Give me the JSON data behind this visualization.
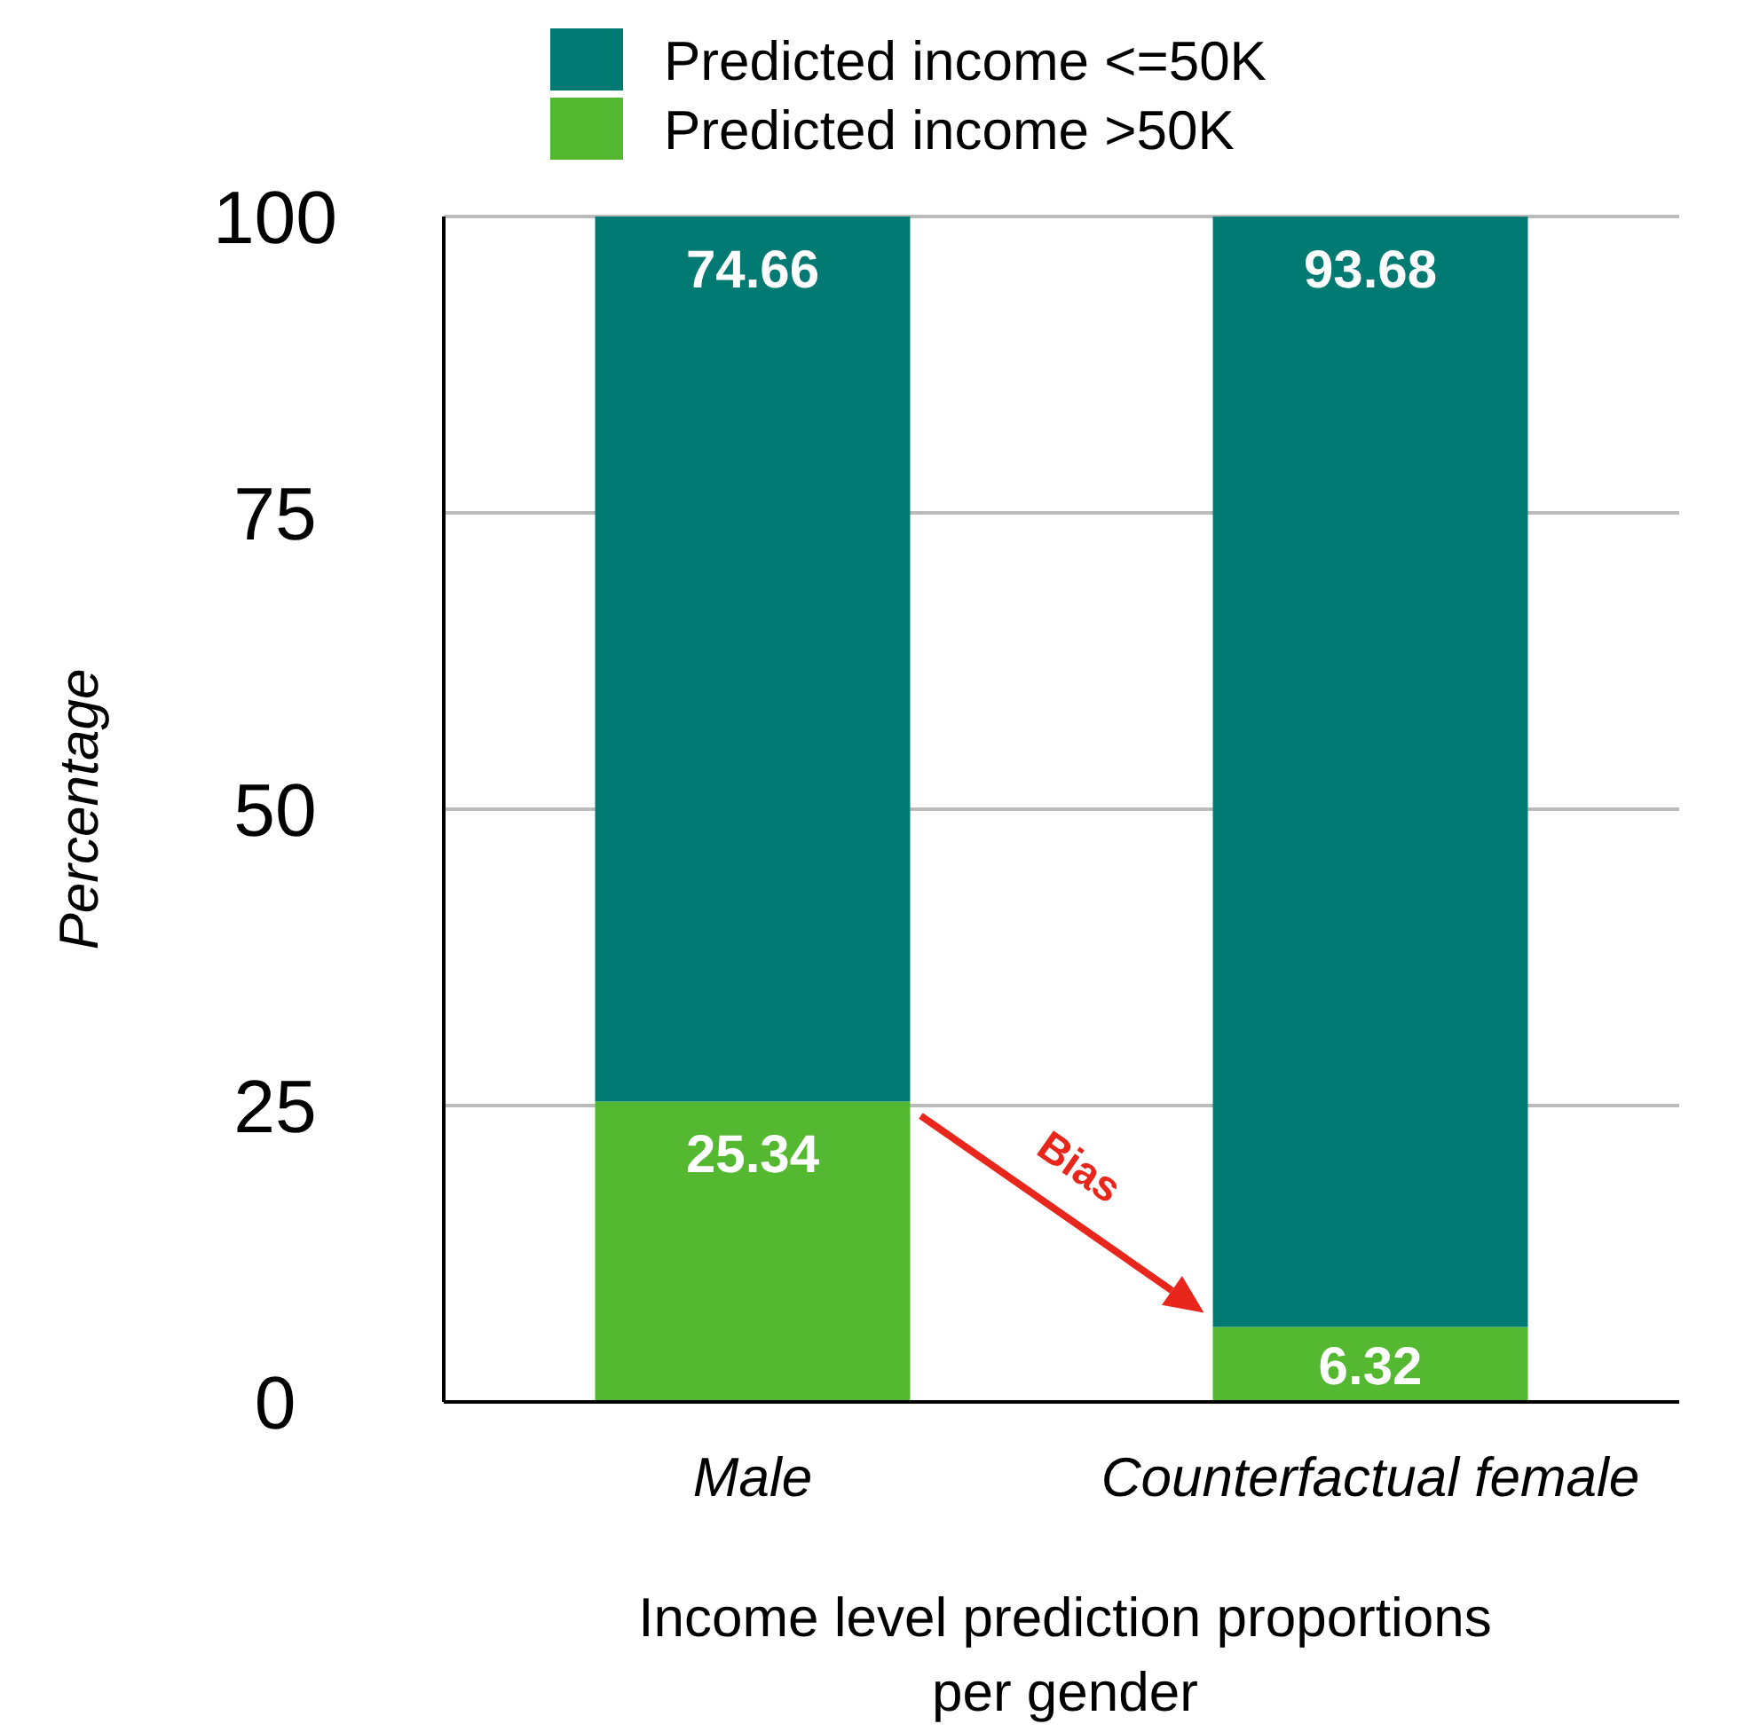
{
  "chart_data": {
    "type": "bar",
    "stacked": true,
    "xlabel": "Income level prediction proportions per gender",
    "ylabel": "Percentage",
    "categories": [
      "Male",
      "Counterfactual female"
    ],
    "series": [
      {
        "name": "Predicted income >50K",
        "color": "#55b831",
        "values": [
          25.34,
          6.32
        ]
      },
      {
        "name": "Predicted income <=50K",
        "color": "#007a73",
        "values": [
          74.66,
          93.68
        ]
      }
    ],
    "ylim": [
      0,
      100
    ],
    "yticks": [
      0,
      25,
      50,
      75,
      100
    ],
    "grid": "y",
    "legend": "top",
    "data_labels": true,
    "annotations": [
      "Bias"
    ]
  }
}
